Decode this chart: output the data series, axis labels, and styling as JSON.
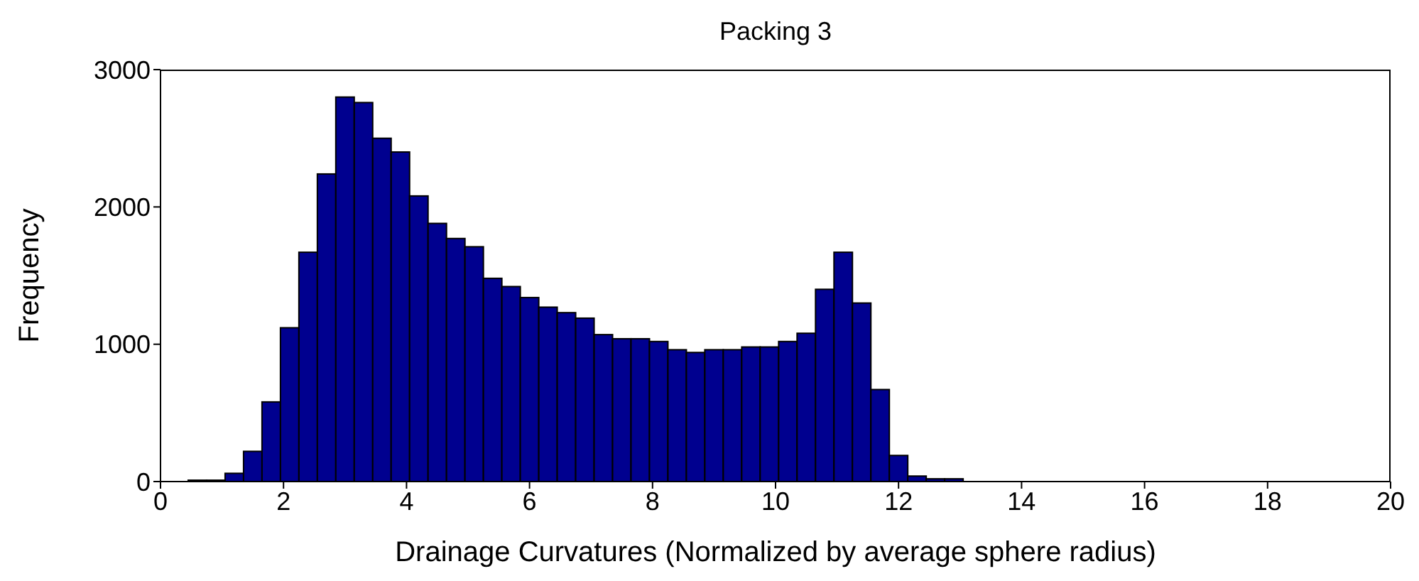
{
  "chart_data": {
    "type": "histogram",
    "title": "Packing 3",
    "xlabel": "Drainage Curvatures (Normalized by average sphere radius)",
    "ylabel": "Frequency",
    "bins": [
      0.45,
      0.75,
      1.05,
      1.35,
      1.65,
      1.95,
      2.25,
      2.55,
      2.85,
      3.15,
      3.45,
      3.75,
      4.05,
      4.35,
      4.65,
      4.95,
      5.25,
      5.55,
      5.85,
      6.15,
      6.45,
      6.75,
      7.05,
      7.35,
      7.65,
      7.95,
      8.25,
      8.55,
      8.85,
      9.15,
      9.45,
      9.75,
      10.05,
      10.35,
      10.65,
      10.95,
      11.25,
      11.55,
      11.85,
      12.15,
      12.45,
      12.75,
      13.05
    ],
    "values": [
      10,
      10,
      60,
      220,
      580,
      1120,
      1670,
      2240,
      2800,
      2760,
      2500,
      2400,
      2080,
      1880,
      1770,
      1710,
      1480,
      1420,
      1340,
      1270,
      1230,
      1190,
      1070,
      1040,
      1040,
      1020,
      960,
      940,
      960,
      960,
      980,
      980,
      1020,
      1080,
      1400,
      1670,
      1300,
      670,
      190,
      40,
      20,
      20
    ],
    "color": "#00008f",
    "xlim": [
      0,
      20
    ],
    "xticks": [
      0,
      2,
      4,
      6,
      8,
      10,
      12,
      14,
      16,
      18,
      20
    ],
    "ylim": [
      0,
      3000
    ],
    "yticks": [
      0,
      1000,
      2000,
      3000
    ]
  }
}
